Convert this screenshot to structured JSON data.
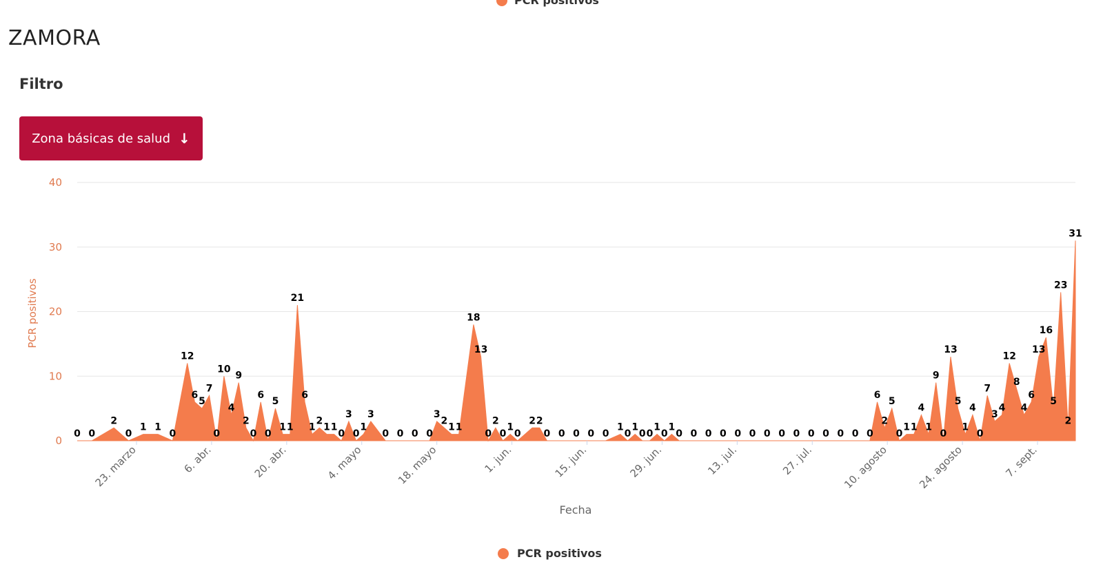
{
  "legend_top_label": "PCR positivos",
  "page_title": "ZAMORA",
  "filter_label": "Filtro",
  "zone_button": {
    "label": "Zona básicas de salud",
    "icon": "arrow-down-icon"
  },
  "colors": {
    "area": "#f47c4c",
    "axis_text": "#e07a4f",
    "button": "#b7103a",
    "grid": "#e6e6e6"
  },
  "chart_data": {
    "type": "area",
    "xlabel": "Fecha",
    "ylabel": "PCR positivos",
    "ylim": [
      0,
      40
    ],
    "yticks": [
      0,
      10,
      20,
      30,
      40
    ],
    "xticks": [
      "23. marzo",
      "6. abr.",
      "20. abr.",
      "4. mayo",
      "18. mayo",
      "1. jun.",
      "15. jun.",
      "29. jun.",
      "13. jul.",
      "27. jul.",
      "10. agosto",
      "24. agosto",
      "7. sept."
    ],
    "legend": "bottom",
    "grid": true,
    "series": [
      {
        "name": "PCR positivos",
        "color": "#f47c4c",
        "points": [
          [
            0,
            0
          ],
          [
            2,
            0
          ],
          [
            5,
            2
          ],
          [
            7,
            0
          ],
          [
            9,
            1
          ],
          [
            11,
            1
          ],
          [
            13,
            0
          ],
          [
            15,
            12
          ],
          [
            16,
            6
          ],
          [
            17,
            5
          ],
          [
            18,
            7
          ],
          [
            19,
            0
          ],
          [
            20,
            10
          ],
          [
            21,
            4
          ],
          [
            22,
            9
          ],
          [
            23,
            2
          ],
          [
            24,
            0
          ],
          [
            25,
            6
          ],
          [
            26,
            0
          ],
          [
            27,
            5
          ],
          [
            28,
            1
          ],
          [
            29,
            1
          ],
          [
            30,
            21
          ],
          [
            31,
            6
          ],
          [
            32,
            1
          ],
          [
            33,
            2
          ],
          [
            34,
            1
          ],
          [
            35,
            1
          ],
          [
            36,
            0
          ],
          [
            37,
            3
          ],
          [
            38,
            0
          ],
          [
            39,
            1
          ],
          [
            40,
            3
          ],
          [
            42,
            0
          ],
          [
            44,
            0
          ],
          [
            46,
            0
          ],
          [
            48,
            0
          ],
          [
            49,
            3
          ],
          [
            50,
            2
          ],
          [
            51,
            1
          ],
          [
            52,
            1
          ],
          [
            54,
            18
          ],
          [
            55,
            13
          ],
          [
            56,
            0
          ],
          [
            57,
            2
          ],
          [
            58,
            0
          ],
          [
            59,
            1
          ],
          [
            60,
            0
          ],
          [
            62,
            2
          ],
          [
            63,
            2
          ],
          [
            64,
            0
          ],
          [
            66,
            0
          ],
          [
            68,
            0
          ],
          [
            70,
            0
          ],
          [
            72,
            0
          ],
          [
            74,
            1
          ],
          [
            75,
            0
          ],
          [
            76,
            1
          ],
          [
            77,
            0
          ],
          [
            78,
            0
          ],
          [
            79,
            1
          ],
          [
            80,
            0
          ],
          [
            81,
            1
          ],
          [
            82,
            0
          ],
          [
            84,
            0
          ],
          [
            86,
            0
          ],
          [
            88,
            0
          ],
          [
            90,
            0
          ],
          [
            92,
            0
          ],
          [
            94,
            0
          ],
          [
            96,
            0
          ],
          [
            98,
            0
          ],
          [
            100,
            0
          ],
          [
            102,
            0
          ],
          [
            104,
            0
          ],
          [
            106,
            0
          ],
          [
            108,
            0
          ],
          [
            109,
            6
          ],
          [
            110,
            2
          ],
          [
            111,
            5
          ],
          [
            112,
            0
          ],
          [
            113,
            1
          ],
          [
            114,
            1
          ],
          [
            115,
            4
          ],
          [
            116,
            1
          ],
          [
            117,
            9
          ],
          [
            118,
            0
          ],
          [
            119,
            13
          ],
          [
            120,
            5
          ],
          [
            121,
            1
          ],
          [
            122,
            4
          ],
          [
            123,
            0
          ],
          [
            124,
            7
          ],
          [
            125,
            3
          ],
          [
            126,
            4
          ],
          [
            127,
            12
          ],
          [
            128,
            8
          ],
          [
            129,
            4
          ],
          [
            130,
            6
          ],
          [
            131,
            13
          ],
          [
            132,
            16
          ],
          [
            133,
            5
          ],
          [
            134,
            23
          ],
          [
            135,
            2
          ],
          [
            136,
            31
          ]
        ]
      }
    ]
  }
}
